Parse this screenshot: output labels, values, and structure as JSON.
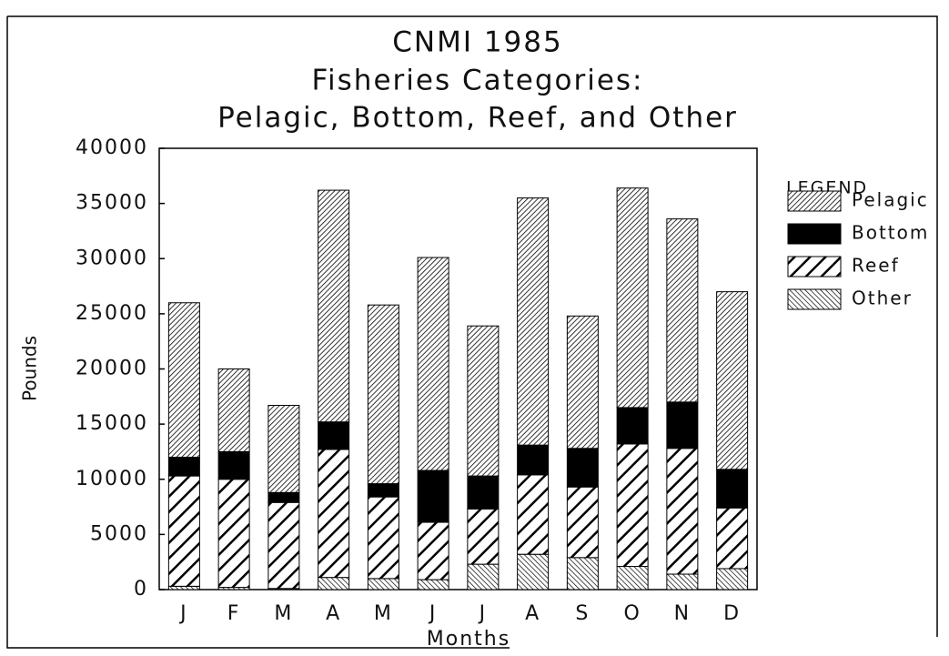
{
  "chart_data": {
    "type": "stacked-bar",
    "title": [
      "CNMI 1985",
      "Fisheries Categories:",
      "Pelagic, Bottom, Reef, and Other"
    ],
    "xlabel": "Months",
    "ylabel": "Pounds",
    "legend_title": "LEGEND",
    "legend": "right",
    "categories": [
      "J",
      "F",
      "M",
      "A",
      "M",
      "J",
      "J",
      "A",
      "S",
      "O",
      "N",
      "D"
    ],
    "series": [
      {
        "name": "Pelagic",
        "color": "#000000",
        "pattern": "dense-hatch",
        "values": [
          14000,
          7500,
          7900,
          21000,
          16200,
          19300,
          13600,
          22400,
          12000,
          19900,
          16600,
          16100
        ]
      },
      {
        "name": "Bottom",
        "color": "#000000",
        "pattern": "solid",
        "values": [
          1700,
          2500,
          900,
          2500,
          1200,
          4700,
          3000,
          2700,
          3500,
          3300,
          4200,
          3500
        ]
      },
      {
        "name": "Reef",
        "color": "#000000",
        "pattern": "wide-hatch",
        "values": [
          10000,
          9800,
          7800,
          11600,
          7400,
          5200,
          5000,
          7200,
          6400,
          11100,
          11400,
          5500
        ]
      },
      {
        "name": "Other",
        "color": "#000000",
        "pattern": "fine-hatch",
        "values": [
          300,
          200,
          100,
          1100,
          1000,
          900,
          2300,
          3200,
          2900,
          2100,
          1400,
          1900
        ]
      }
    ],
    "ylim": [
      0,
      40000
    ],
    "yticks": [
      0,
      5000,
      10000,
      15000,
      20000,
      25000,
      30000,
      35000,
      40000
    ],
    "grid": false
  }
}
